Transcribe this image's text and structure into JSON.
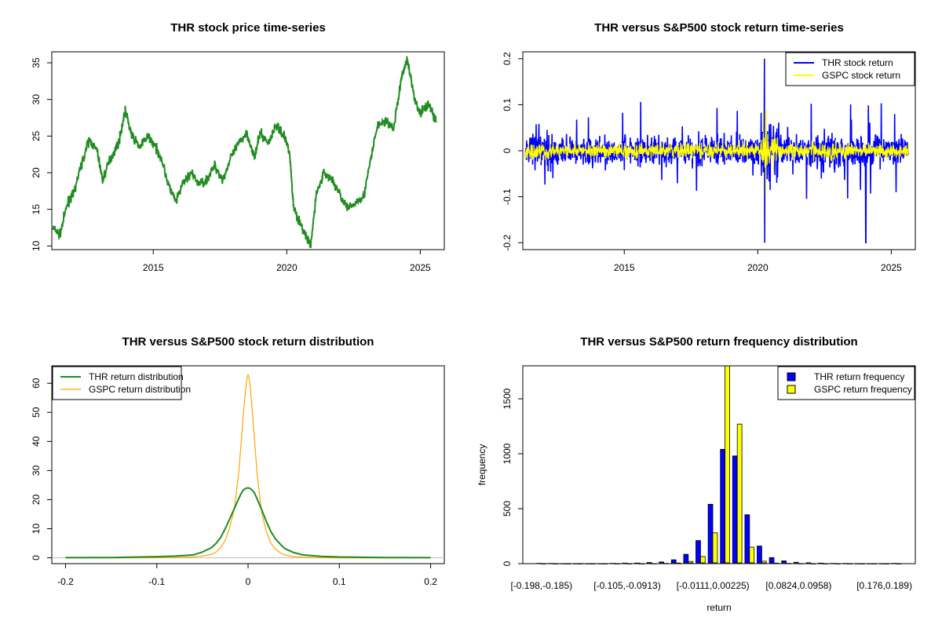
{
  "chart_data": [
    {
      "type": "line",
      "title": "THR stock price time-series",
      "xlabel": "",
      "ylabel": "",
      "xlim": [
        2011.2,
        2025.9
      ],
      "ylim": [
        9.5,
        36.5
      ],
      "x_ticks": [
        2015,
        2020,
        2025
      ],
      "y_ticks": [
        10,
        15,
        20,
        25,
        30,
        35
      ],
      "grid": false,
      "colors": {
        "price": "#228b22"
      },
      "series": [
        {
          "x": [
            2011.25,
            2011.5,
            2011.8,
            2012.0,
            2012.3,
            2012.6,
            2012.9,
            2013.1,
            2013.4,
            2013.7,
            2013.95,
            2014.2,
            2014.5,
            2014.8,
            2015.0,
            2015.3,
            2015.6,
            2015.85,
            2016.1,
            2016.4,
            2016.7,
            2017.0,
            2017.3,
            2017.6,
            2017.9,
            2018.2,
            2018.5,
            2018.8,
            2019.0,
            2019.3,
            2019.6,
            2019.9,
            2020.1,
            2020.25,
            2020.5,
            2020.7,
            2020.9,
            2021.1,
            2021.4,
            2021.7,
            2022.0,
            2022.3,
            2022.6,
            2022.9,
            2023.1,
            2023.4,
            2023.7,
            2024.0,
            2024.3,
            2024.5,
            2024.8,
            2025.0,
            2025.3,
            2025.6
          ],
          "values": [
            12.5,
            11.5,
            16.0,
            17.0,
            21.0,
            24.5,
            23.0,
            19.0,
            22.0,
            24.0,
            28.5,
            25.0,
            23.5,
            25.0,
            24.0,
            22.0,
            18.0,
            16.0,
            18.5,
            20.0,
            18.5,
            19.0,
            21.0,
            19.0,
            22.0,
            24.0,
            25.5,
            22.0,
            25.5,
            24.0,
            26.5,
            25.0,
            23.0,
            15.5,
            13.0,
            11.5,
            10.0,
            17.0,
            20.0,
            19.0,
            17.0,
            15.0,
            16.0,
            17.0,
            21.0,
            26.5,
            27.0,
            26.0,
            33.0,
            35.5,
            30.0,
            28.0,
            29.5,
            27.0
          ]
        }
      ]
    },
    {
      "type": "line",
      "title": "THR versus S&P500 stock return time-series",
      "xlabel": "",
      "ylabel": "",
      "xlim": [
        2011.2,
        2025.9
      ],
      "ylim": [
        -0.215,
        0.215
      ],
      "x_ticks": [
        2015,
        2020,
        2025
      ],
      "y_ticks": [
        -0.2,
        -0.1,
        0.0,
        0.1,
        0.2
      ],
      "legend": "top-right",
      "grid": false,
      "series": [
        {
          "name": "THR stock return",
          "color": "#0000ff",
          "approx_std": 0.022,
          "max": 0.2,
          "min": -0.2
        },
        {
          "name": "GSPC stock return",
          "color": "#ffff00",
          "approx_std": 0.011,
          "max": 0.09,
          "min": -0.1
        }
      ]
    },
    {
      "type": "line",
      "title": "THR versus S&P500 stock return distribution",
      "xlabel": "",
      "ylabel": "",
      "xlim": [
        -0.215,
        0.215
      ],
      "ylim": [
        -2,
        66
      ],
      "x_ticks": [
        -0.2,
        -0.1,
        0.0,
        0.1,
        0.2
      ],
      "y_ticks": [
        0,
        10,
        20,
        30,
        40,
        50,
        60
      ],
      "legend": "top-left",
      "grid": false,
      "x": [
        -0.2,
        -0.15,
        -0.1,
        -0.08,
        -0.06,
        -0.05,
        -0.04,
        -0.035,
        -0.03,
        -0.025,
        -0.02,
        -0.015,
        -0.01,
        -0.007,
        -0.005,
        -0.003,
        -0.001,
        0.0,
        0.001,
        0.003,
        0.005,
        0.007,
        0.01,
        0.015,
        0.02,
        0.025,
        0.03,
        0.035,
        0.04,
        0.05,
        0.06,
        0.08,
        0.1,
        0.15,
        0.2
      ],
      "series": [
        {
          "name": "THR return distribution",
          "color": "#228b22",
          "values": [
            0.05,
            0.1,
            0.4,
            0.6,
            1.0,
            2.0,
            3.5,
            5.0,
            7.0,
            10.0,
            13.5,
            17.0,
            20.5,
            22.5,
            23.3,
            23.8,
            24.0,
            24.0,
            24.0,
            23.7,
            23.1,
            22.3,
            20.2,
            16.5,
            12.5,
            9.0,
            6.5,
            4.8,
            3.2,
            1.8,
            1.0,
            0.5,
            0.3,
            0.1,
            0.05
          ]
        },
        {
          "name": "GSPC return distribution",
          "color": "#ffa500",
          "values": [
            0.0,
            0.0,
            0.05,
            0.1,
            0.3,
            0.6,
            1.2,
            2.0,
            3.5,
            6.0,
            10.5,
            17.0,
            30.0,
            42.0,
            50.0,
            57.0,
            62.0,
            63.0,
            62.0,
            57.0,
            49.0,
            41.0,
            28.5,
            15.5,
            9.0,
            5.0,
            3.0,
            1.8,
            1.0,
            0.4,
            0.2,
            0.05,
            0.0,
            0.0,
            0.0
          ]
        }
      ]
    },
    {
      "type": "bar",
      "title": "THR versus S&P500 return frequency distribution",
      "xlabel": "return",
      "ylabel": "frequency",
      "ylim": [
        0,
        1800
      ],
      "y_ticks": [
        0,
        500,
        1000,
        1500
      ],
      "legend": "top-right",
      "grid": false,
      "tick_labels": [
        "[-0.198,-0.185)",
        "[-0.105,-0.0913)",
        "[-0.0111,0.00225)",
        "[0.0824,0.0958)",
        "[0.176,0.189)"
      ],
      "tick_positions": [
        0,
        7,
        14,
        21,
        28
      ],
      "bin_count": 30,
      "series": [
        {
          "name": "THR return frequency",
          "color": "#0000ff",
          "values": [
            3,
            2,
            1,
            1,
            1,
            1,
            3,
            5,
            6,
            10,
            15,
            35,
            85,
            210,
            540,
            1040,
            980,
            445,
            160,
            55,
            25,
            12,
            8,
            5,
            3,
            2,
            1,
            1,
            1,
            3
          ]
        },
        {
          "name": "GSPC return frequency",
          "color": "#ffff00",
          "values": [
            0,
            0,
            0,
            0,
            0,
            0,
            0,
            0,
            0,
            1,
            2,
            6,
            20,
            65,
            280,
            1800,
            1270,
            150,
            22,
            5,
            2,
            1,
            0,
            0,
            0,
            0,
            0,
            0,
            0,
            0
          ]
        }
      ]
    }
  ]
}
